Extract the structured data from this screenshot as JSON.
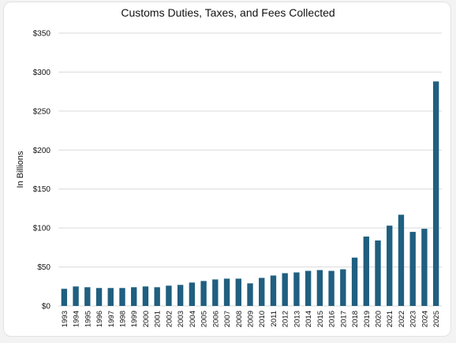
{
  "chart_data": {
    "type": "bar",
    "title": "Customs Duties, Taxes, and Fees Collected",
    "xlabel": "",
    "ylabel": "In Billions",
    "ylim": [
      0,
      350
    ],
    "y_ticks": [
      "$0",
      "$50",
      "$100",
      "$150",
      "$200",
      "$250",
      "$300",
      "$350"
    ],
    "grid": true,
    "bar_color": "#1f5f80",
    "categories": [
      "1993",
      "1994",
      "1995",
      "1996",
      "1997",
      "1998",
      "1999",
      "2000",
      "2001",
      "2002",
      "2003",
      "2004",
      "2005",
      "2006",
      "2007",
      "2008",
      "2009",
      "2010",
      "2011",
      "2012",
      "2013",
      "2014",
      "2015",
      "2016",
      "2017",
      "2018",
      "2019",
      "2020",
      "2021",
      "2022",
      "2023",
      "2024",
      "2025"
    ],
    "values": [
      22,
      25,
      24,
      23,
      23,
      23,
      24,
      25,
      24,
      26,
      27,
      30,
      32,
      34,
      35,
      35,
      29,
      36,
      39,
      42,
      43,
      45,
      46,
      45,
      47,
      62,
      89,
      84,
      103,
      117,
      95,
      99,
      288
    ]
  }
}
